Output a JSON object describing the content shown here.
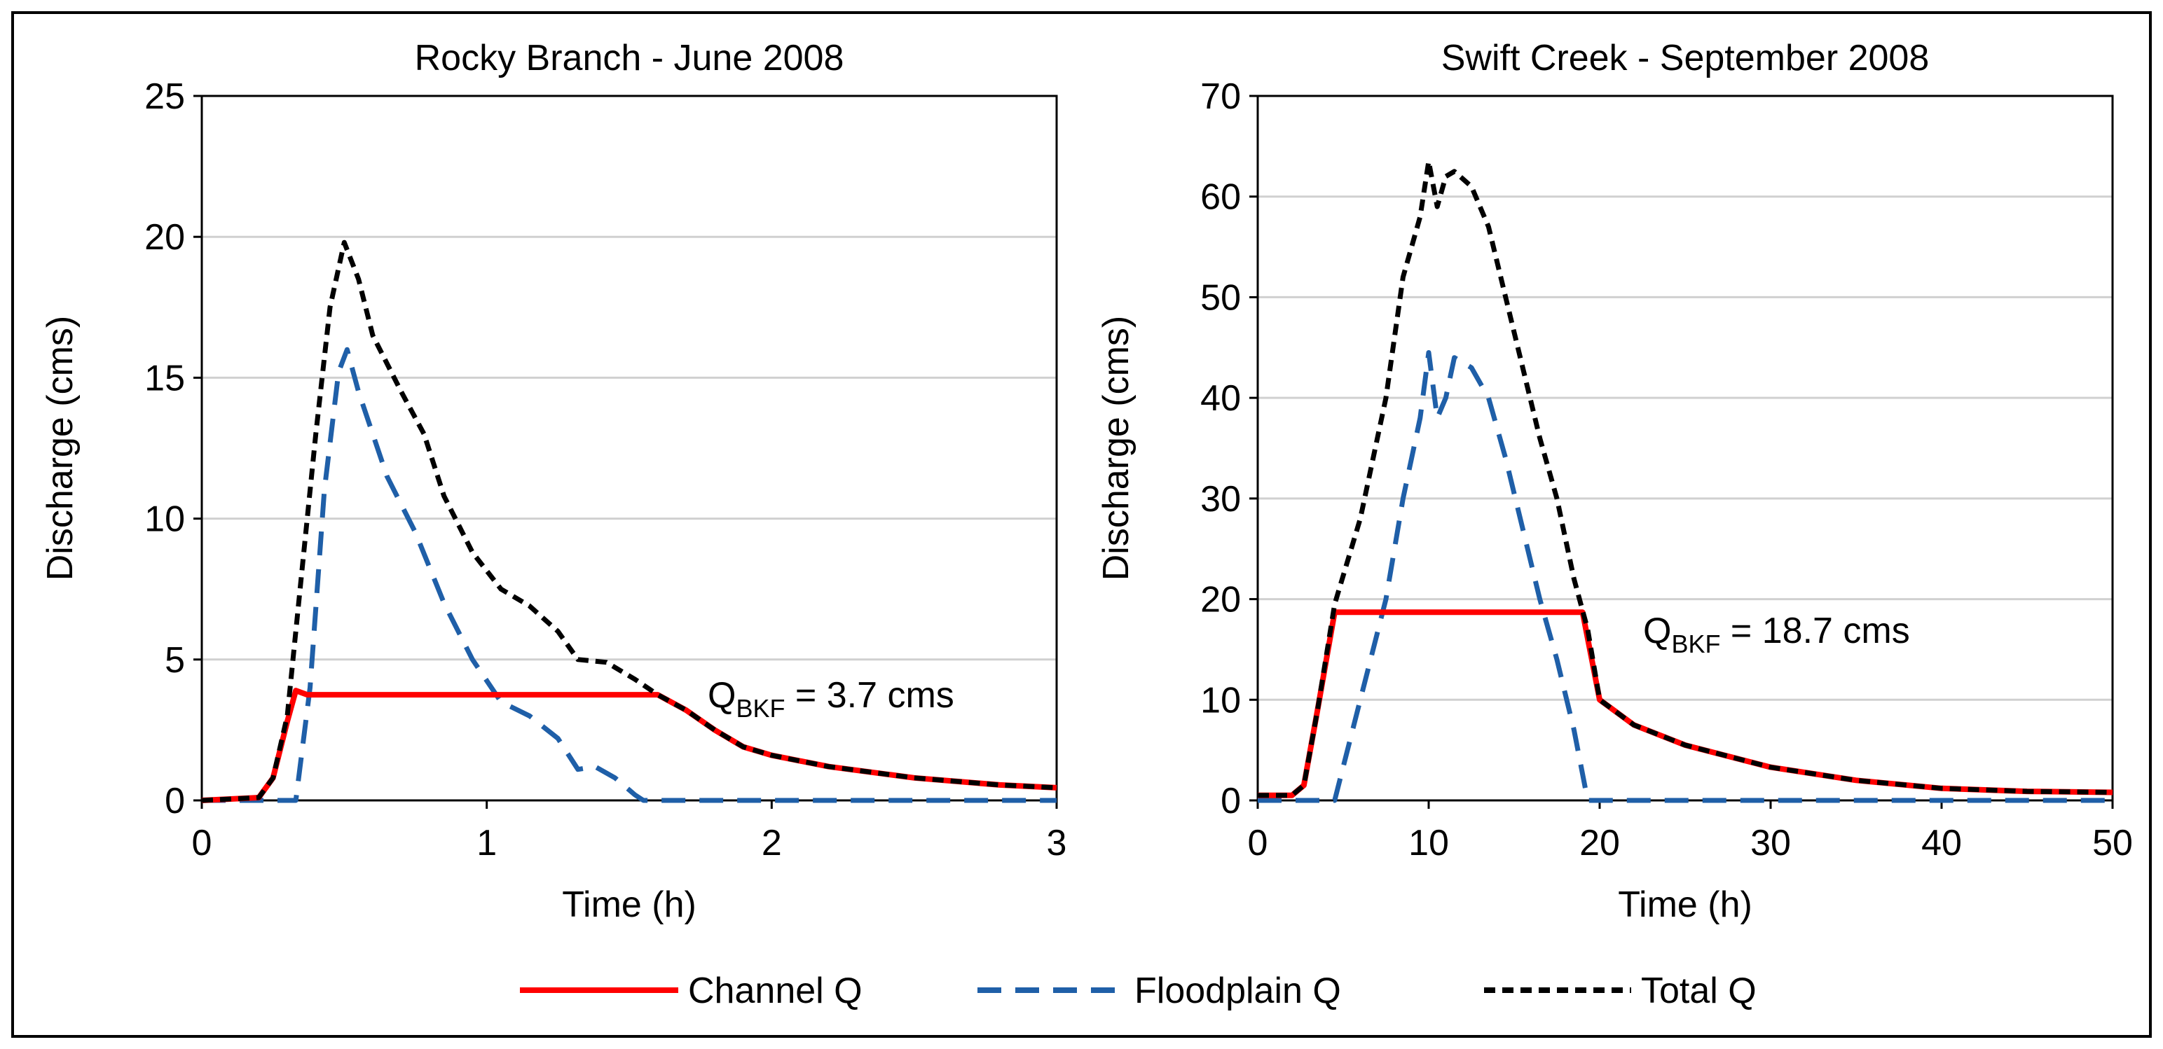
{
  "legend": {
    "position": "bottom",
    "items": [
      {
        "key": "channel",
        "label": "Channel Q",
        "color": "#ff0000",
        "dash": "solid"
      },
      {
        "key": "floodplain",
        "label": "Floodplain Q",
        "color": "#1f5fa8",
        "dash": "long-dash"
      },
      {
        "key": "total",
        "label": "Total Q",
        "color": "#000000",
        "dash": "short-dash"
      }
    ]
  },
  "chart_data": [
    {
      "type": "line",
      "title": "Rocky Branch - June 2008",
      "xlabel": "Time (h)",
      "ylabel": "Discharge (cms)",
      "xlim": [
        0,
        3
      ],
      "ylim": [
        0,
        25
      ],
      "xticks": [
        0,
        1,
        2,
        3
      ],
      "yticks": [
        0,
        5,
        10,
        15,
        20,
        25
      ],
      "grid": "horizontal",
      "annotation": {
        "main": "Q",
        "sub": "BKF",
        "rest": " = 3.7 cms"
      },
      "series": [
        {
          "key": "channel",
          "points": [
            [
              0,
              0
            ],
            [
              0.2,
              0.1
            ],
            [
              0.25,
              0.8
            ],
            [
              0.3,
              2.8
            ],
            [
              0.33,
              3.9
            ],
            [
              0.37,
              3.75
            ],
            [
              1.6,
              3.75
            ],
            [
              1.7,
              3.2
            ],
            [
              1.8,
              2.5
            ],
            [
              1.9,
              1.9
            ],
            [
              2.0,
              1.6
            ],
            [
              2.2,
              1.2
            ],
            [
              2.5,
              0.8
            ],
            [
              2.8,
              0.55
            ],
            [
              3.0,
              0.45
            ]
          ]
        },
        {
          "key": "floodplain",
          "points": [
            [
              0,
              0
            ],
            [
              0.33,
              0
            ],
            [
              0.38,
              4
            ],
            [
              0.43,
              11
            ],
            [
              0.48,
              15.2
            ],
            [
              0.51,
              16
            ],
            [
              0.55,
              14.5
            ],
            [
              0.65,
              11.5
            ],
            [
              0.75,
              9.5
            ],
            [
              0.85,
              7
            ],
            [
              0.95,
              5
            ],
            [
              1.05,
              3.5
            ],
            [
              1.15,
              3
            ],
            [
              1.25,
              2.2
            ],
            [
              1.32,
              1.1
            ],
            [
              1.38,
              1.2
            ],
            [
              1.45,
              0.8
            ],
            [
              1.52,
              0.2
            ],
            [
              1.55,
              0
            ],
            [
              3.0,
              0
            ]
          ]
        },
        {
          "key": "total",
          "points": [
            [
              0,
              0
            ],
            [
              0.2,
              0.1
            ],
            [
              0.25,
              0.8
            ],
            [
              0.3,
              3
            ],
            [
              0.35,
              8
            ],
            [
              0.4,
              13
            ],
            [
              0.45,
              17.5
            ],
            [
              0.5,
              19.8
            ],
            [
              0.55,
              18.5
            ],
            [
              0.6,
              16.5
            ],
            [
              0.7,
              14.5
            ],
            [
              0.78,
              13
            ],
            [
              0.85,
              10.8
            ],
            [
              0.95,
              8.8
            ],
            [
              1.05,
              7.5
            ],
            [
              1.15,
              6.9
            ],
            [
              1.25,
              6
            ],
            [
              1.32,
              5
            ],
            [
              1.42,
              4.9
            ],
            [
              1.52,
              4.3
            ],
            [
              1.6,
              3.75
            ],
            [
              1.7,
              3.2
            ],
            [
              1.8,
              2.5
            ],
            [
              1.9,
              1.9
            ],
            [
              2.0,
              1.6
            ],
            [
              2.2,
              1.2
            ],
            [
              2.5,
              0.8
            ],
            [
              2.8,
              0.55
            ],
            [
              3.0,
              0.45
            ]
          ]
        }
      ]
    },
    {
      "type": "line",
      "title": "Swift Creek - September 2008",
      "xlabel": "Time (h)",
      "ylabel": "Discharge (cms)",
      "xlim": [
        0,
        50
      ],
      "ylim": [
        0,
        70
      ],
      "xticks": [
        0,
        10,
        20,
        30,
        40,
        50
      ],
      "yticks": [
        0,
        10,
        20,
        30,
        40,
        50,
        60,
        70
      ],
      "grid": "horizontal",
      "annotation": {
        "main": "Q",
        "sub": "BKF",
        "rest": " = 18.7 cms"
      },
      "series": [
        {
          "key": "channel",
          "points": [
            [
              0,
              0.5
            ],
            [
              2,
              0.5
            ],
            [
              2.7,
              1.5
            ],
            [
              3.5,
              9
            ],
            [
              4.5,
              18.7
            ],
            [
              19,
              18.7
            ],
            [
              20,
              10
            ],
            [
              22,
              7.5
            ],
            [
              25,
              5.5
            ],
            [
              30,
              3.3
            ],
            [
              35,
              2
            ],
            [
              40,
              1.2
            ],
            [
              45,
              0.9
            ],
            [
              50,
              0.8
            ]
          ]
        },
        {
          "key": "floodplain",
          "points": [
            [
              0,
              0
            ],
            [
              4.5,
              0
            ],
            [
              6,
              10
            ],
            [
              7.5,
              20
            ],
            [
              8.5,
              30
            ],
            [
              9.5,
              38
            ],
            [
              10,
              44.5
            ],
            [
              10.5,
              38
            ],
            [
              11,
              40
            ],
            [
              11.5,
              44
            ],
            [
              12.5,
              43
            ],
            [
              13.5,
              40
            ],
            [
              14.5,
              34
            ],
            [
              15.5,
              27
            ],
            [
              16.5,
              20
            ],
            [
              17.5,
              14
            ],
            [
              18.5,
              7
            ],
            [
              19.3,
              0
            ],
            [
              50,
              0
            ]
          ]
        },
        {
          "key": "total",
          "points": [
            [
              0,
              0.5
            ],
            [
              2,
              0.5
            ],
            [
              2.7,
              1.5
            ],
            [
              3.5,
              9
            ],
            [
              4.5,
              19.5
            ],
            [
              6,
              28
            ],
            [
              7.5,
              40
            ],
            [
              8.5,
              52
            ],
            [
              9.5,
              58
            ],
            [
              10,
              63.5
            ],
            [
              10.5,
              59
            ],
            [
              11,
              62
            ],
            [
              11.5,
              62.5
            ],
            [
              12.5,
              61
            ],
            [
              13.5,
              57
            ],
            [
              14.5,
              50
            ],
            [
              15.5,
              43
            ],
            [
              16.5,
              36
            ],
            [
              17.5,
              30
            ],
            [
              18.5,
              22
            ],
            [
              19.3,
              17
            ],
            [
              20,
              10
            ],
            [
              22,
              7.5
            ],
            [
              25,
              5.5
            ],
            [
              30,
              3.3
            ],
            [
              35,
              2
            ],
            [
              40,
              1.2
            ],
            [
              45,
              0.9
            ],
            [
              50,
              0.8
            ]
          ]
        }
      ]
    }
  ]
}
